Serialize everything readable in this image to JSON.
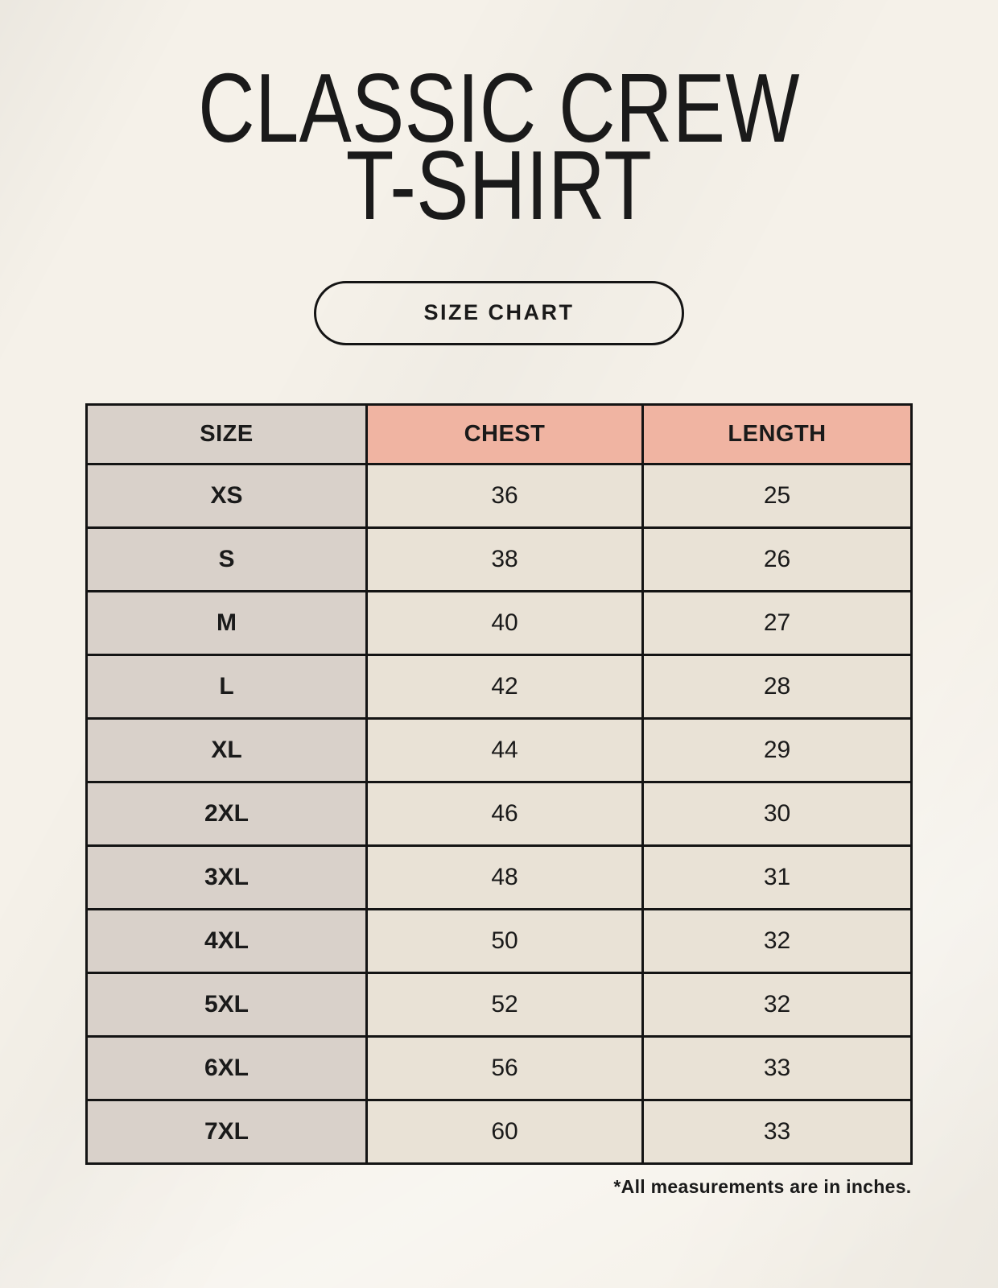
{
  "header": {
    "title_line1": "CLASSIC CREW",
    "title_line2": "T-SHIRT",
    "badge_label": "SIZE CHART"
  },
  "footer": {
    "note": "*All measurements are in inches."
  },
  "colors": {
    "page_bg": "#f5f1e9",
    "accent_header": "#f0b4a2",
    "size_column_bg": "#d9d1ca",
    "value_cell_bg": "#e9e2d6",
    "border": "#141414",
    "text": "#1a1a1a"
  },
  "chart_data": {
    "type": "table",
    "title": "CLASSIC CREW T-SHIRT SIZE CHART",
    "units": "inches",
    "columns": [
      "SIZE",
      "CHEST",
      "LENGTH"
    ],
    "rows": [
      [
        "XS",
        "36",
        "25"
      ],
      [
        "S",
        "38",
        "26"
      ],
      [
        "M",
        "40",
        "27"
      ],
      [
        "L",
        "42",
        "28"
      ],
      [
        "XL",
        "44",
        "29"
      ],
      [
        "2XL",
        "46",
        "30"
      ],
      [
        "3XL",
        "48",
        "31"
      ],
      [
        "4XL",
        "50",
        "32"
      ],
      [
        "5XL",
        "52",
        "32"
      ],
      [
        "6XL",
        "56",
        "33"
      ],
      [
        "7XL",
        "60",
        "33"
      ]
    ]
  }
}
